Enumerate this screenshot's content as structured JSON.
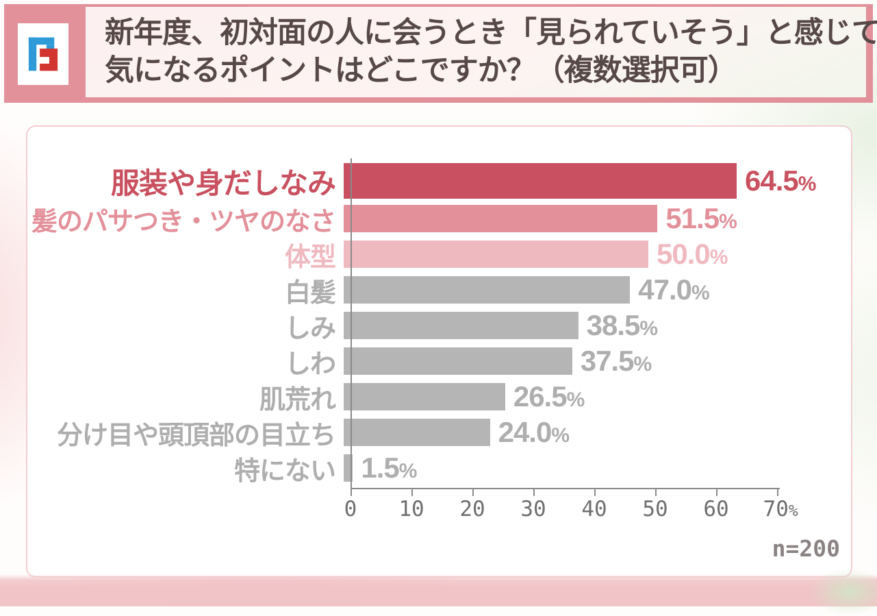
{
  "header": {
    "logo_icon": "brand-f-logo",
    "title_line1": "新年度、初対面の人に会うとき「見られていそう」と感じて",
    "title_line2": "気になるポイントはどこですか？（複数選択可）",
    "band_color": "#e2919b"
  },
  "chart_data": {
    "type": "bar",
    "orientation": "horizontal",
    "title": "",
    "xlabel": "",
    "ylabel": "",
    "xlim": [
      0,
      70
    ],
    "unit": "%",
    "x_ticks": [
      0,
      10,
      20,
      30,
      40,
      50,
      60,
      70
    ],
    "x_tick_last_suffix": "%",
    "sample_size_label": "n=200",
    "categories": [
      "服装や身だしなみ",
      "髪のパサつき・ツヤのなさ",
      "体型",
      "白髪",
      "しみ",
      "しわ",
      "肌荒れ",
      "分け目や頭頂部の目立ち",
      "特にない"
    ],
    "values": [
      64.5,
      51.5,
      50.0,
      47.0,
      38.5,
      37.5,
      26.5,
      24.0,
      1.5
    ],
    "rows": [
      {
        "label": "服装や身だしなみ",
        "value": 64.5,
        "display": "64.5",
        "bar_color": "#c85061",
        "text_color": "#c9505f",
        "emphasis": true
      },
      {
        "label": "髪のパサつき・ツヤのなさ",
        "value": 51.5,
        "display": "51.5",
        "bar_color": "#e3909a",
        "text_color": "#e3909a",
        "emphasis": false
      },
      {
        "label": "体型",
        "value": 50.0,
        "display": "50.0",
        "bar_color": "#efb9c0",
        "text_color": "#efb9c0",
        "emphasis": false
      },
      {
        "label": "白髪",
        "value": 47.0,
        "display": "47.0",
        "bar_color": "#b5b5b5",
        "text_color": "#aeaeae",
        "emphasis": false
      },
      {
        "label": "しみ",
        "value": 38.5,
        "display": "38.5",
        "bar_color": "#b5b5b5",
        "text_color": "#aeaeae",
        "emphasis": false
      },
      {
        "label": "しわ",
        "value": 37.5,
        "display": "37.5",
        "bar_color": "#b5b5b5",
        "text_color": "#aeaeae",
        "emphasis": false
      },
      {
        "label": "肌荒れ",
        "value": 26.5,
        "display": "26.5",
        "bar_color": "#b5b5b5",
        "text_color": "#aeaeae",
        "emphasis": false
      },
      {
        "label": "分け目や頭頂部の目立ち",
        "value": 24.0,
        "display": "24.0",
        "bar_color": "#b5b5b5",
        "text_color": "#aeaeae",
        "emphasis": false
      },
      {
        "label": "特にない",
        "value": 1.5,
        "display": "1.5",
        "bar_color": "#b5b5b5",
        "text_color": "#aeaeae",
        "emphasis": false
      }
    ]
  },
  "colors": {
    "accent_dark": "#c85061",
    "accent_mid": "#e3909a",
    "accent_light": "#efb9c0",
    "neutral_bar": "#b5b5b5",
    "axis": "#8a8a8a",
    "title_text": "#574848",
    "card_border": "#f3cdd1"
  }
}
